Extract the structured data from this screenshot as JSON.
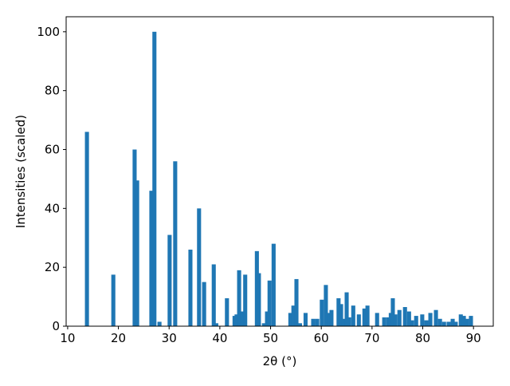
{
  "chart_data": {
    "type": "bar",
    "x_label": "2θ (°)",
    "y_label": "Intensities (scaled)",
    "color": "#1f77b4",
    "x": [
      13.8,
      19.0,
      23.2,
      23.7,
      26.5,
      27.1,
      28.1,
      30.1,
      31.2,
      34.2,
      35.9,
      36.9,
      38.8,
      39.3,
      41.4,
      42.9,
      43.3,
      43.8,
      44.4,
      45.0,
      47.3,
      47.7,
      48.7,
      49.3,
      49.8,
      50.6,
      53.9,
      54.5,
      55.1,
      55.8,
      56.9,
      58.4,
      59.2,
      60.1,
      60.9,
      61.5,
      62.0,
      63.4,
      63.9,
      64.4,
      65.0,
      65.5,
      66.3,
      67.4,
      68.5,
      69.1,
      71.0,
      72.4,
      73.2,
      73.7,
      74.1,
      74.6,
      75.4,
      76.5,
      77.3,
      77.9,
      78.7,
      79.9,
      80.7,
      81.5,
      82.6,
      83.4,
      84.2,
      85.1,
      85.9,
      86.5,
      87.5,
      88.1,
      88.7,
      89.5
    ],
    "values": [
      66,
      17.5,
      60,
      49.5,
      46,
      100,
      1.5,
      31,
      56,
      26,
      40,
      15,
      21,
      1,
      9.5,
      3.5,
      4,
      19,
      5,
      17.5,
      25.5,
      18,
      1,
      5,
      15.5,
      28,
      4.5,
      7,
      16,
      1,
      4.5,
      2.5,
      2.5,
      9,
      14,
      4.5,
      5.5,
      9.5,
      7.5,
      2.5,
      11.5,
      3,
      7,
      4,
      6,
      7,
      4.5,
      3,
      3,
      4.5,
      9.5,
      4,
      5.5,
      6.5,
      5,
      2,
      3.5,
      4,
      2,
      4.5,
      5.5,
      2.5,
      1.5,
      1.5,
      2.5,
      1.5,
      4,
      3.5,
      2.5,
      3.5
    ],
    "xlim": [
      9.7,
      93.9
    ],
    "ylim": [
      0,
      105.1
    ],
    "xticks": [
      10,
      20,
      30,
      40,
      50,
      60,
      70,
      80,
      90
    ],
    "yticks": [
      0,
      20,
      40,
      60,
      80,
      100
    ]
  }
}
